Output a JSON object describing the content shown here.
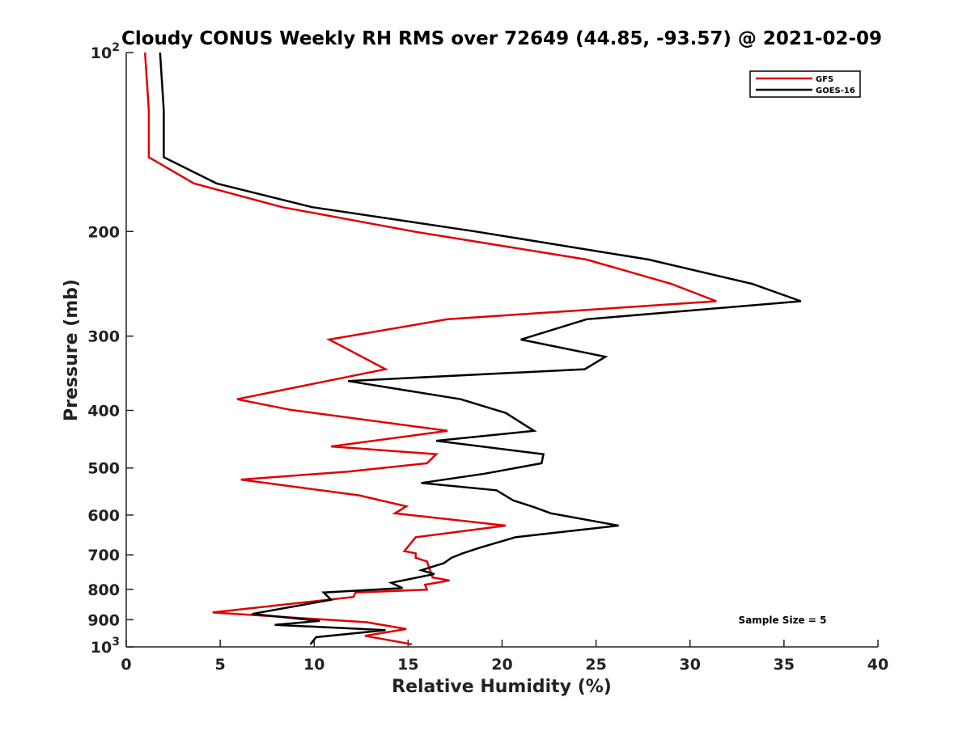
{
  "chart_data": {
    "type": "line",
    "title": "Cloudy CONUS Weekly RH RMS over 72649 (44.85, -93.57) @ 2021-02-09",
    "xlabel": "Relative Humidity (%)",
    "ylabel": "Pressure (mb)",
    "xlim": [
      0,
      40
    ],
    "ylim": [
      100,
      1000
    ],
    "y_scale": "log",
    "y_reversed": true,
    "xticks": [
      0,
      5,
      10,
      15,
      20,
      25,
      30,
      35,
      40
    ],
    "xtick_labels": [
      "0",
      "5",
      "10",
      "15",
      "20",
      "25",
      "30",
      "35",
      "40"
    ],
    "yticks": [
      {
        "value": 100,
        "base": "10",
        "exp": "2"
      },
      {
        "value": 200,
        "base": "200",
        "exp": ""
      },
      {
        "value": 300,
        "base": "300",
        "exp": ""
      },
      {
        "value": 400,
        "base": "400",
        "exp": ""
      },
      {
        "value": 500,
        "base": "500",
        "exp": ""
      },
      {
        "value": 600,
        "base": "600",
        "exp": ""
      },
      {
        "value": 700,
        "base": "700",
        "exp": ""
      },
      {
        "value": 800,
        "base": "800",
        "exp": ""
      },
      {
        "value": 900,
        "base": "900",
        "exp": ""
      },
      {
        "value": 1000,
        "base": "10",
        "exp": "3"
      }
    ],
    "grid": false,
    "legend_position": "top-right",
    "annotation": "Sample Size = 5",
    "series": [
      {
        "name": "GFS",
        "color": "#e00000",
        "points": [
          [
            1.0,
            100
          ],
          [
            1.2,
            125
          ],
          [
            1.2,
            150
          ],
          [
            3.6,
            166
          ],
          [
            8.3,
            182
          ],
          [
            15.3,
            200
          ],
          [
            24.5,
            223
          ],
          [
            29.0,
            245
          ],
          [
            31.4,
            262
          ],
          [
            17.1,
            281
          ],
          [
            10.8,
            304
          ],
          [
            13.8,
            341
          ],
          [
            5.9,
            383
          ],
          [
            8.7,
            399
          ],
          [
            17.1,
            433
          ],
          [
            10.9,
            460
          ],
          [
            16.5,
            474
          ],
          [
            16.0,
            491
          ],
          [
            11.8,
            507
          ],
          [
            6.1,
            523
          ],
          [
            12.4,
            556
          ],
          [
            14.9,
            580
          ],
          [
            14.3,
            596
          ],
          [
            20.2,
            625
          ],
          [
            15.4,
            654
          ],
          [
            14.8,
            690
          ],
          [
            15.4,
            696
          ],
          [
            15.4,
            708
          ],
          [
            16.0,
            718
          ],
          [
            16.2,
            748
          ],
          [
            16.3,
            764
          ],
          [
            17.2,
            773
          ],
          [
            15.9,
            786
          ],
          [
            16.0,
            801
          ],
          [
            12.2,
            810
          ],
          [
            12.1,
            824
          ],
          [
            4.6,
            875
          ],
          [
            12.8,
            909
          ],
          [
            14.9,
            933
          ],
          [
            12.7,
            958
          ],
          [
            15.2,
            990
          ]
        ]
      },
      {
        "name": "GOES-16",
        "color": "#000000",
        "points": [
          [
            1.8,
            100
          ],
          [
            2.0,
            125
          ],
          [
            2.0,
            150
          ],
          [
            4.8,
            166
          ],
          [
            9.9,
            182
          ],
          [
            18.6,
            200
          ],
          [
            27.8,
            223
          ],
          [
            33.3,
            245
          ],
          [
            35.9,
            262
          ],
          [
            24.5,
            281
          ],
          [
            21.0,
            304
          ],
          [
            25.5,
            325
          ],
          [
            24.4,
            341
          ],
          [
            11.8,
            357
          ],
          [
            17.8,
            383
          ],
          [
            20.2,
            404
          ],
          [
            21.7,
            433
          ],
          [
            16.5,
            450
          ],
          [
            22.2,
            474
          ],
          [
            22.1,
            491
          ],
          [
            19.1,
            511
          ],
          [
            15.7,
            530
          ],
          [
            19.7,
            545
          ],
          [
            20.6,
            567
          ],
          [
            21.7,
            582
          ],
          [
            22.6,
            596
          ],
          [
            26.2,
            625
          ],
          [
            20.7,
            654
          ],
          [
            18.8,
            681
          ],
          [
            17.9,
            696
          ],
          [
            17.3,
            708
          ],
          [
            16.9,
            723
          ],
          [
            15.7,
            743
          ],
          [
            16.4,
            754
          ],
          [
            14.1,
            780
          ],
          [
            14.7,
            796
          ],
          [
            10.5,
            810
          ],
          [
            10.9,
            833
          ],
          [
            6.7,
            880
          ],
          [
            10.3,
            904
          ],
          [
            7.9,
            918
          ],
          [
            13.8,
            937
          ],
          [
            10.1,
            963
          ],
          [
            9.8,
            990
          ]
        ]
      }
    ]
  }
}
